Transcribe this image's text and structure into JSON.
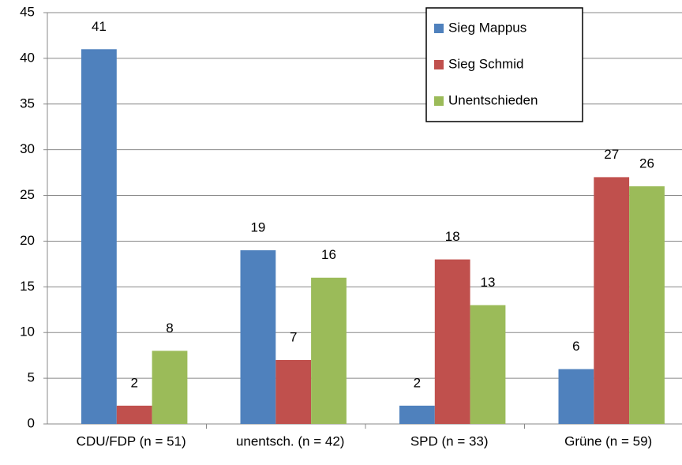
{
  "chart_data": {
    "type": "bar",
    "categories": [
      "CDU/FDP (n = 51)",
      "unentsch. (n = 42)",
      "SPD (n = 33)",
      "Grüne (n = 59)"
    ],
    "series": [
      {
        "name": "Sieg Mappus",
        "color": "#4f81bd",
        "values": [
          41,
          19,
          2,
          6
        ]
      },
      {
        "name": "Sieg Schmid",
        "color": "#c0504d",
        "values": [
          2,
          7,
          18,
          27
        ]
      },
      {
        "name": "Unentschieden",
        "color": "#9bbb59",
        "values": [
          8,
          16,
          13,
          26
        ]
      }
    ],
    "ylim": [
      0,
      45
    ],
    "yticks": [
      0,
      5,
      10,
      15,
      20,
      25,
      30,
      35,
      40,
      45
    ],
    "grid": true,
    "legend": "upper right"
  }
}
